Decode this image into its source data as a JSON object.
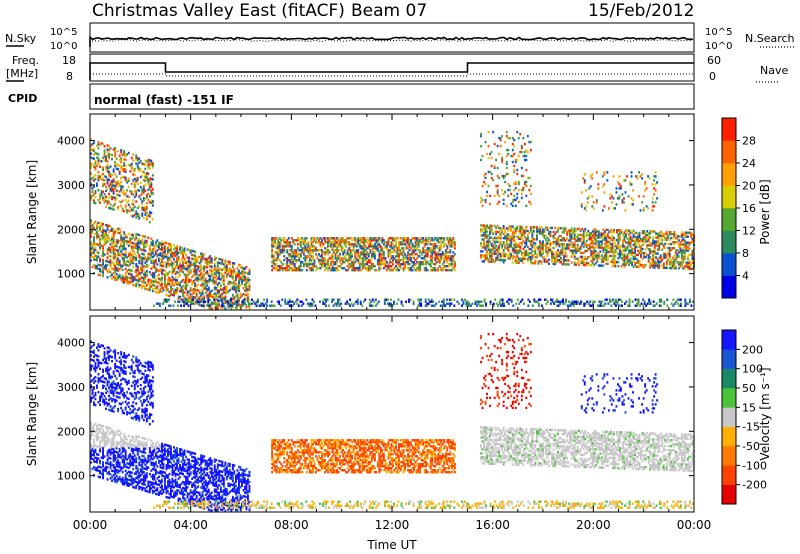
{
  "header": {
    "station": "Christmas Valley East (fitACF)",
    "beam": "Beam 07",
    "date": "15/Feb/2012"
  },
  "strip_nsky": {
    "label": "N.Sky",
    "tick_top": "10^5",
    "tick_bottom": "10^0",
    "right_label": "N.Search"
  },
  "strip_freq": {
    "label_line1": "Freq.",
    "label_line2": "[MHz]",
    "tick_top": "18",
    "tick_bottom": "8",
    "right_tick_top": "60",
    "right_tick_bottom": "0",
    "right_label": "Nave"
  },
  "cpid": {
    "label": "CPID",
    "text": "normal (fast) -151 IF"
  },
  "colors": {
    "scale": [
      "#0000e6",
      "#0b52d0",
      "#2b8b5e",
      "#56a830",
      "#d7cd00",
      "#ff9f00",
      "#ff6300",
      "#ff2000",
      "#e60000"
    ],
    "velocity_scale": [
      "#1414ff",
      "#1b55d4",
      "#1a8a66",
      "#4cc43a",
      "#c8c8c8",
      "#ffb000",
      "#ff7a00",
      "#ff4200",
      "#e60000"
    ],
    "ground": "#c8c8c8"
  },
  "chart_data": [
    {
      "type": "heatmap",
      "name": "power",
      "xlabel": "",
      "ylabel": "Slant Range [km]",
      "ylim": [
        180,
        4600
      ],
      "yticks": [
        "1000",
        "2000",
        "3000",
        "4000"
      ],
      "colorbar_label": "Power [dB]",
      "colorbar_ticks": [
        "4",
        "8",
        "12",
        "16",
        "20",
        "24",
        "28"
      ]
    },
    {
      "type": "heatmap",
      "name": "velocity",
      "xlabel": "Time UT",
      "ylabel": "Slant Range [km]",
      "ylim": [
        180,
        4600
      ],
      "yticks": [
        "1000",
        "2000",
        "3000",
        "4000"
      ],
      "xticks": [
        "00:00",
        "04:00",
        "08:00",
        "12:00",
        "16:00",
        "20:00",
        "00:00"
      ],
      "colorbar_label": "Velocity [m s⁻¹]",
      "colorbar_ticks": [
        "200",
        "100",
        "50",
        "15",
        "-15",
        "-50",
        "-100",
        "-200"
      ]
    }
  ]
}
